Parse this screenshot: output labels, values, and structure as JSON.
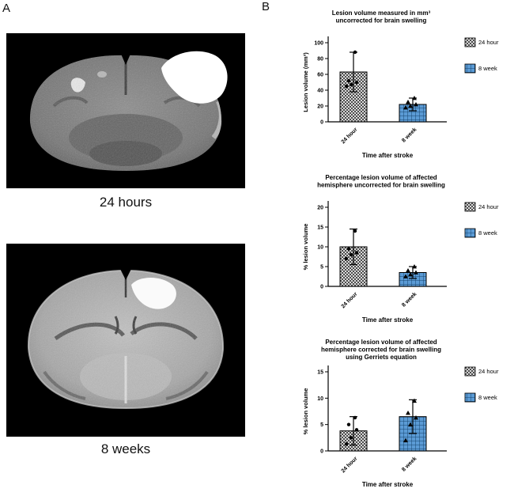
{
  "panel_a": {
    "label": "A",
    "images": [
      {
        "name": "mri-24-hours",
        "caption": "24 hours"
      },
      {
        "name": "mri-8-weeks",
        "caption": "8 weeks"
      }
    ]
  },
  "panel_b": {
    "label": "B"
  },
  "colors": {
    "bar_24h_pattern_dark": "#4d4d4d",
    "bar_24h_pattern_light": "#d9d9d9",
    "bar_8w_fill": "#5b9bd5",
    "bar_8w_grid": "#17456e"
  },
  "chart_data": [
    {
      "type": "bar",
      "title": "Lesion volume measured in mm³ uncorrected for brain swelling",
      "title_lines": [
        "Lesion volume measured in mm³",
        "uncorrected for brain swelling"
      ],
      "categories": [
        "24 hour",
        "8 week"
      ],
      "values": [
        63,
        22
      ],
      "sd": [
        25,
        8
      ],
      "points": [
        [
          45,
          47,
          50,
          52,
          88
        ],
        [
          18,
          20,
          22,
          25,
          30
        ]
      ],
      "ylabel": "Lesion volume (mm³)",
      "xlabel": "Time after stroke",
      "ylim": [
        0,
        100
      ],
      "yticks": [
        0,
        20,
        40,
        60,
        80,
        100
      ],
      "legend": [
        "24 hour",
        "8 week"
      ],
      "legend_position": "right"
    },
    {
      "type": "bar",
      "title": "Percentage lesion volume of affected hemisphere uncorrected for brain swelling",
      "title_lines": [
        "Percentage lesion volume of affected",
        "hemisphere uncorrected for brain swelling"
      ],
      "categories": [
        "24 hour",
        "8 week"
      ],
      "values": [
        10,
        3.5
      ],
      "sd": [
        4.5,
        1.5
      ],
      "points": [
        [
          7,
          8,
          8.5,
          9.5,
          14
        ],
        [
          2.5,
          3,
          3.5,
          4,
          5
        ]
      ],
      "ylabel": "% lesion volume",
      "xlabel": "Time after stroke",
      "ylim": [
        0,
        20
      ],
      "yticks": [
        0,
        5,
        10,
        15,
        20
      ],
      "legend": [
        "24 hour",
        "8 week"
      ],
      "legend_position": "right"
    },
    {
      "type": "bar",
      "title": "Percentage lesion volume of affected hemisphere corrected for brain swelling using Gerriets equation",
      "title_lines": [
        "Percentage lesion volume of affected",
        "hemisphere corrected for brain swelling",
        "using Gerriets equation"
      ],
      "categories": [
        "24 hour",
        "8 week"
      ],
      "values": [
        3.8,
        6.5
      ],
      "sd": [
        2.7,
        3.2
      ],
      "points": [
        [
          1.3,
          2.5,
          4,
          5,
          6.3
        ],
        [
          2,
          5,
          6.3,
          7.2,
          9.5
        ]
      ],
      "ylabel": "% lesion volume",
      "xlabel": "Time after stroke",
      "ylim": [
        0,
        15
      ],
      "yticks": [
        0,
        5,
        10,
        15
      ],
      "legend": [
        "24 hour",
        "8 week"
      ],
      "legend_position": "right"
    }
  ]
}
